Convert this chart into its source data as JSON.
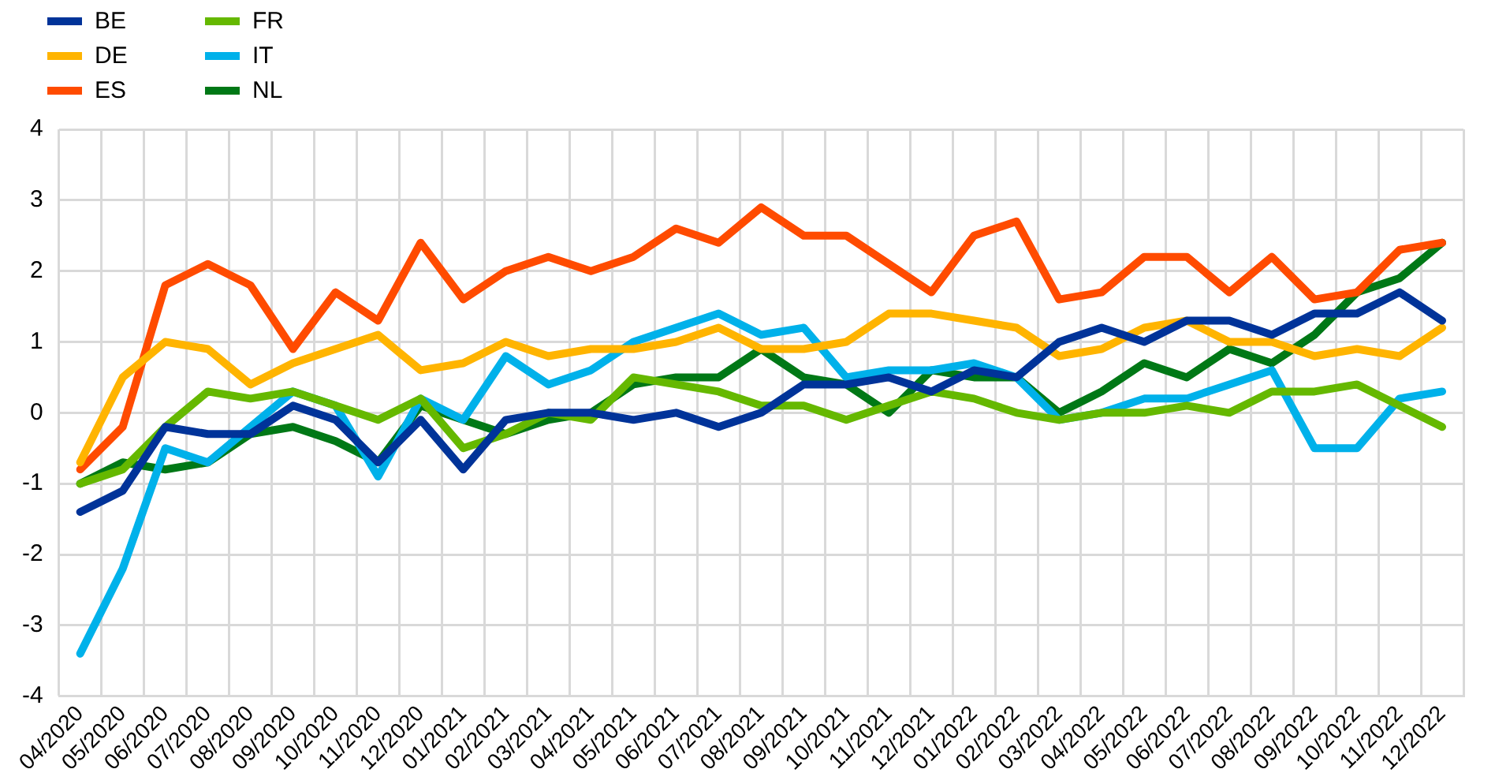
{
  "chart_data": {
    "type": "line",
    "categories": [
      "04/2020",
      "05/2020",
      "06/2020",
      "07/2020",
      "08/2020",
      "09/2020",
      "10/2020",
      "11/2020",
      "12/2020",
      "01/2021",
      "02/2021",
      "03/2021",
      "04/2021",
      "05/2021",
      "06/2021",
      "07/2021",
      "08/2021",
      "09/2021",
      "10/2021",
      "11/2021",
      "12/2021",
      "01/2022",
      "02/2022",
      "03/2022",
      "04/2022",
      "05/2022",
      "06/2022",
      "07/2022",
      "08/2022",
      "09/2022",
      "10/2022",
      "11/2022",
      "12/2022"
    ],
    "series": [
      {
        "name": "BE",
        "color": "#003399",
        "values": [
          -1.4,
          -1.1,
          -0.2,
          -0.3,
          -0.3,
          0.1,
          -0.1,
          -0.7,
          -0.1,
          -0.8,
          -0.1,
          0,
          0,
          -0.1,
          0,
          -0.2,
          0,
          0.4,
          0.4,
          0.5,
          0.3,
          0.6,
          0.5,
          1.0,
          1.2,
          1.0,
          1.3,
          1.3,
          1.1,
          1.4,
          1.4,
          1.7,
          1.3
        ]
      },
      {
        "name": "DE",
        "color": "#ffb400",
        "values": [
          -0.7,
          0.5,
          1.0,
          0.9,
          0.4,
          0.7,
          0.9,
          1.1,
          0.6,
          0.7,
          1.0,
          0.8,
          0.9,
          0.9,
          1.0,
          1.2,
          0.9,
          0.9,
          1.0,
          1.4,
          1.4,
          1.3,
          1.2,
          0.8,
          0.9,
          1.2,
          1.3,
          1.0,
          1.0,
          0.8,
          0.9,
          0.8,
          1.2
        ]
      },
      {
        "name": "ES",
        "color": "#ff4b00",
        "values": [
          -0.8,
          -0.2,
          1.8,
          2.1,
          1.8,
          0.9,
          1.7,
          1.3,
          2.4,
          1.6,
          2.0,
          2.2,
          2.0,
          2.2,
          2.6,
          2.4,
          2.9,
          2.5,
          2.5,
          2.1,
          1.7,
          2.5,
          2.7,
          1.6,
          1.7,
          2.2,
          2.2,
          1.7,
          2.2,
          1.6,
          1.7,
          2.3,
          2.4
        ]
      },
      {
        "name": "FR",
        "color": "#65b800",
        "values": [
          -1.0,
          -0.8,
          -0.2,
          0.3,
          0.2,
          0.3,
          0.1,
          -0.1,
          0.2,
          -0.5,
          -0.3,
          0,
          -0.1,
          0.5,
          0.4,
          0.3,
          0.1,
          0.1,
          -0.1,
          0.1,
          0.3,
          0.2,
          0.0,
          -0.1,
          0,
          0,
          0.1,
          0,
          0.3,
          0.3,
          0.4,
          0.1,
          -0.2
        ]
      },
      {
        "name": "IT",
        "color": "#00b1ea",
        "values": [
          -3.4,
          -2.2,
          -0.5,
          -0.7,
          -0.2,
          0.3,
          0.1,
          -0.9,
          0.2,
          -0.1,
          0.8,
          0.4,
          0.6,
          1.0,
          1.2,
          1.4,
          1.1,
          1.2,
          0.5,
          0.6,
          0.6,
          0.7,
          0.5,
          -0.1,
          0,
          0.2,
          0.2,
          0.4,
          0.6,
          -0.5,
          -0.5,
          0.2,
          0.3
        ]
      },
      {
        "name": "NL",
        "color": "#007816",
        "values": [
          -1.0,
          -0.7,
          -0.8,
          -0.7,
          -0.3,
          -0.2,
          -0.4,
          -0.7,
          0.1,
          -0.1,
          -0.3,
          -0.1,
          0,
          0.4,
          0.5,
          0.5,
          0.9,
          0.5,
          0.4,
          0,
          0.6,
          0.5,
          0.5,
          0,
          0.3,
          0.7,
          0.5,
          0.9,
          0.7,
          1.1,
          1.7,
          1.9,
          2.4
        ]
      }
    ],
    "ylim": [
      -4,
      4
    ],
    "yticks": [
      -4,
      -3,
      -2,
      -1,
      0,
      1,
      2,
      3,
      4
    ],
    "grid": true,
    "legend": "top left",
    "marker": "none",
    "line_style": "solid"
  }
}
